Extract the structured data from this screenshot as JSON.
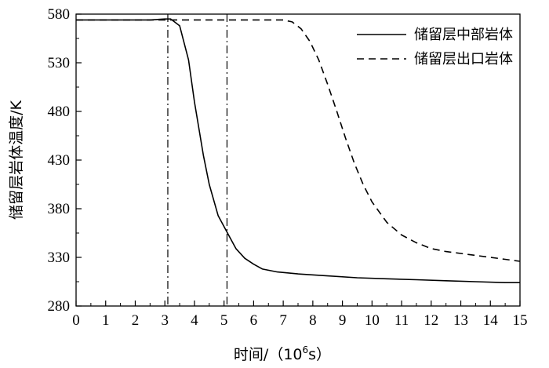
{
  "chart_data": {
    "type": "line",
    "title": "",
    "xlabel": "时间/（10⁶s）",
    "ylabel": "储留层岩体温度/K",
    "xlim": [
      0,
      15
    ],
    "ylim": [
      280,
      580
    ],
    "x_ticks": [
      "0",
      "1",
      "2",
      "3",
      "4",
      "5",
      "6",
      "7",
      "8",
      "9",
      "10",
      "11",
      "12",
      "13",
      "14",
      "15"
    ],
    "y_ticks": [
      "280",
      "330",
      "380",
      "430",
      "480",
      "530",
      "580"
    ],
    "grid": false,
    "legend_position": "top-right",
    "reference_lines_x": [
      3.1,
      5.1
    ],
    "series": [
      {
        "name": "储留层中部岩体",
        "style": "solid",
        "x": [
          0,
          1,
          2,
          2.5,
          3.0,
          3.2,
          3.5,
          3.8,
          4.0,
          4.3,
          4.5,
          4.8,
          5.1,
          5.4,
          5.7,
          6.0,
          6.3,
          6.8,
          7.5,
          8.5,
          9.5,
          10.5,
          11.5,
          12.5,
          13.5,
          14.5,
          15
        ],
        "values": [
          574,
          574,
          574,
          574,
          575,
          575,
          568,
          533,
          490,
          435,
          405,
          373,
          356,
          339,
          329,
          323,
          318,
          315,
          313,
          311,
          309,
          308,
          307,
          306,
          305,
          304,
          304
        ]
      },
      {
        "name": "储留层出口岩体",
        "style": "dashed",
        "x": [
          0,
          1,
          2,
          3,
          4,
          5,
          6,
          7.0,
          7.3,
          7.6,
          7.9,
          8.2,
          8.5,
          8.8,
          9.1,
          9.4,
          9.7,
          10.0,
          10.5,
          11.0,
          11.5,
          12.0,
          12.5,
          13.0,
          13.5,
          14.0,
          14.5,
          15
        ],
        "values": [
          574,
          574,
          574,
          574,
          574,
          574,
          574,
          574,
          572,
          565,
          552,
          533,
          508,
          481,
          453,
          427,
          405,
          387,
          366,
          353,
          345,
          339,
          336,
          334,
          332,
          330,
          328,
          326
        ]
      }
    ]
  }
}
